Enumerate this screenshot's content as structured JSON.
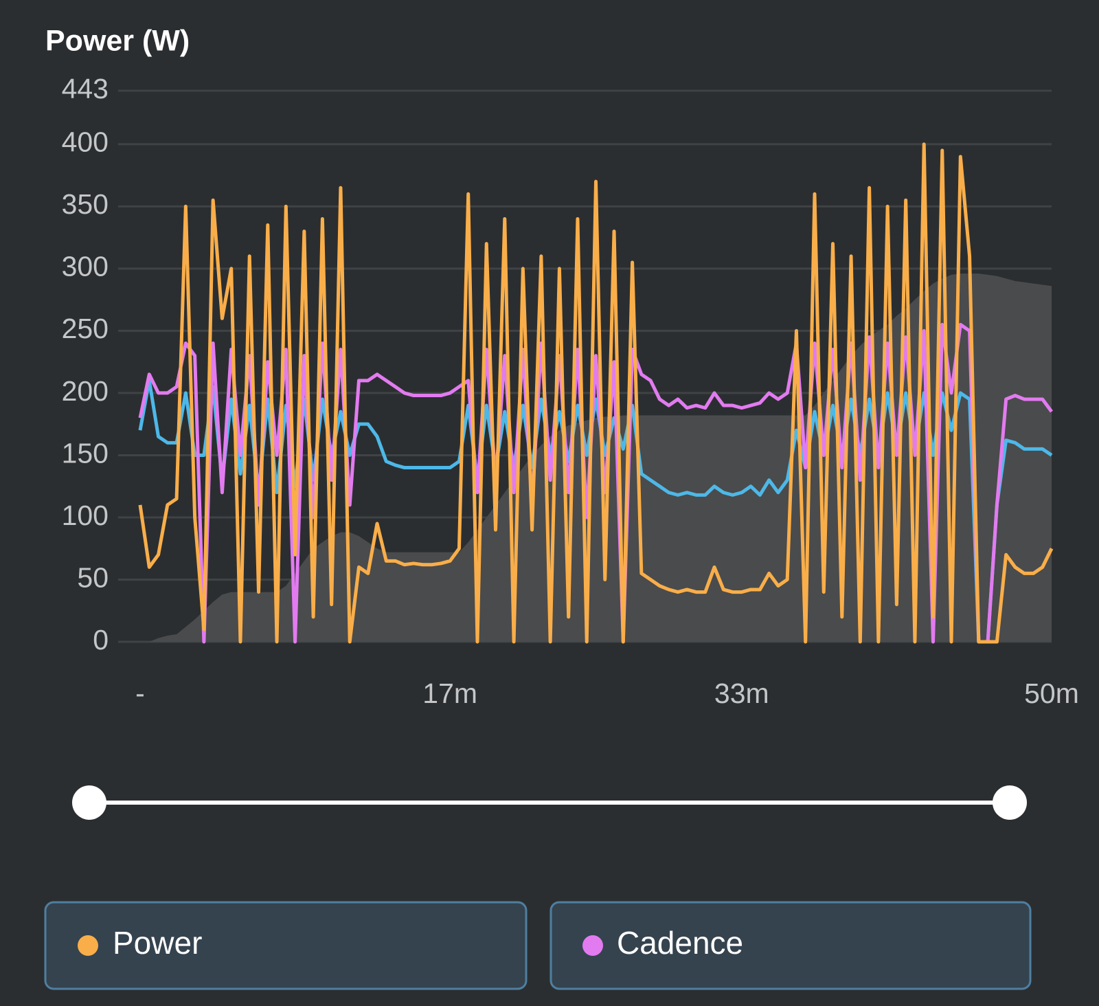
{
  "chart_data": {
    "type": "line",
    "title": "Power (W)",
    "x": [
      0,
      0.5,
      1,
      1.5,
      2,
      2.5,
      3,
      3.5,
      4,
      4.5,
      5,
      5.5,
      6,
      6.5,
      7,
      7.5,
      8,
      8.5,
      9,
      9.5,
      10,
      10.5,
      11,
      11.5,
      12,
      12.5,
      13,
      13.5,
      14,
      14.5,
      15,
      15.5,
      16,
      16.5,
      17,
      17.5,
      18,
      18.5,
      19,
      19.5,
      20,
      20.5,
      21,
      21.5,
      22,
      22.5,
      23,
      23.5,
      24,
      24.5,
      25,
      25.5,
      26,
      26.5,
      27,
      27.5,
      28,
      28.5,
      29,
      29.5,
      30,
      30.5,
      31,
      31.5,
      32,
      32.5,
      33,
      33.5,
      34,
      34.5,
      35,
      35.5,
      36,
      36.5,
      37,
      37.5,
      38,
      38.5,
      39,
      39.5,
      40,
      40.5,
      41,
      41.5,
      42,
      42.5,
      43,
      43.5,
      44,
      44.5,
      45,
      45.5,
      46,
      46.5,
      47,
      47.5,
      48,
      48.5,
      49,
      49.5,
      50
    ],
    "xlim": [
      0,
      50
    ],
    "xticks": [
      {
        "value": 0,
        "label": "-"
      },
      {
        "value": 17,
        "label": "17m"
      },
      {
        "value": 33,
        "label": "33m"
      },
      {
        "value": 50,
        "label": "50m"
      }
    ],
    "ylim": [
      0,
      443
    ],
    "yticks": [
      0,
      50,
      100,
      150,
      200,
      250,
      300,
      350,
      400,
      443
    ],
    "grid": true,
    "series": [
      {
        "name": "Power",
        "color": "#f9ae4a",
        "values": [
          110,
          60,
          70,
          110,
          115,
          350,
          100,
          10,
          355,
          260,
          300,
          0,
          310,
          40,
          335,
          0,
          350,
          70,
          330,
          20,
          340,
          30,
          365,
          0,
          60,
          55,
          95,
          65,
          65,
          62,
          63,
          62,
          62,
          63,
          65,
          75,
          360,
          0,
          320,
          90,
          340,
          0,
          300,
          90,
          310,
          0,
          300,
          20,
          340,
          0,
          370,
          50,
          330,
          0,
          305,
          55,
          50,
          45,
          42,
          40,
          42,
          40,
          40,
          60,
          42,
          40,
          40,
          42,
          42,
          55,
          45,
          50,
          250,
          0,
          360,
          40,
          320,
          20,
          310,
          0,
          365,
          0,
          350,
          30,
          355,
          0,
          400,
          20,
          395,
          0,
          390,
          310,
          0,
          0,
          0,
          70,
          60,
          55,
          55,
          60,
          75
        ]
      },
      {
        "name": "Cadence",
        "color": "#e27bf0",
        "values": [
          180,
          215,
          200,
          200,
          205,
          240,
          230,
          0,
          240,
          120,
          235,
          150,
          230,
          110,
          225,
          150,
          235,
          0,
          230,
          100,
          240,
          130,
          235,
          110,
          210,
          210,
          215,
          210,
          205,
          200,
          198,
          198,
          198,
          198,
          200,
          205,
          210,
          120,
          235,
          130,
          230,
          120,
          235,
          110,
          240,
          130,
          230,
          120,
          235,
          100,
          230,
          120,
          225,
          0,
          235,
          215,
          210,
          195,
          190,
          195,
          188,
          190,
          188,
          200,
          190,
          190,
          188,
          190,
          192,
          200,
          195,
          200,
          240,
          140,
          240,
          150,
          235,
          140,
          240,
          130,
          245,
          140,
          240,
          150,
          245,
          150,
          250,
          0,
          255,
          200,
          255,
          250,
          0,
          0,
          110,
          195,
          198,
          195,
          195,
          195,
          185
        ]
      },
      {
        "color": "#4db8e8",
        "values": [
          170,
          210,
          165,
          160,
          160,
          200,
          150,
          150,
          205,
          130,
          195,
          135,
          190,
          120,
          195,
          120,
          190,
          125,
          195,
          130,
          195,
          150,
          185,
          150,
          175,
          175,
          165,
          145,
          142,
          140,
          140,
          140,
          140,
          140,
          140,
          145,
          190,
          130,
          190,
          140,
          185,
          140,
          190,
          140,
          195,
          150,
          185,
          145,
          190,
          150,
          195,
          150,
          180,
          155,
          190,
          135,
          130,
          125,
          120,
          118,
          120,
          118,
          118,
          125,
          120,
          118,
          120,
          125,
          118,
          130,
          120,
          130,
          170,
          140,
          185,
          150,
          190,
          150,
          195,
          150,
          195,
          150,
          200,
          155,
          200,
          155,
          200,
          150,
          200,
          170,
          200,
          195,
          0,
          0,
          110,
          162,
          160,
          155,
          155,
          155,
          150
        ]
      },
      {
        "color": "#4a4b4c",
        "type": "area",
        "values": [
          0,
          0,
          3,
          5,
          6,
          12,
          18,
          25,
          32,
          38,
          40,
          40,
          40,
          40,
          40,
          40,
          45,
          55,
          65,
          75,
          80,
          85,
          88,
          88,
          85,
          80,
          75,
          72,
          72,
          72,
          72,
          72,
          72,
          72,
          72,
          72,
          80,
          90,
          100,
          110,
          120,
          130,
          140,
          150,
          158,
          165,
          170,
          174,
          176,
          178,
          180,
          181,
          181,
          182,
          182,
          182,
          182,
          182,
          182,
          182,
          182,
          182,
          182,
          182,
          182,
          182,
          182,
          182,
          182,
          182,
          182,
          182,
          182,
          182,
          190,
          200,
          210,
          220,
          230,
          238,
          245,
          250,
          255,
          262,
          268,
          275,
          282,
          288,
          292,
          295,
          296,
          296,
          296,
          295,
          294,
          292,
          290,
          289,
          288,
          287,
          286
        ]
      }
    ]
  }
}
